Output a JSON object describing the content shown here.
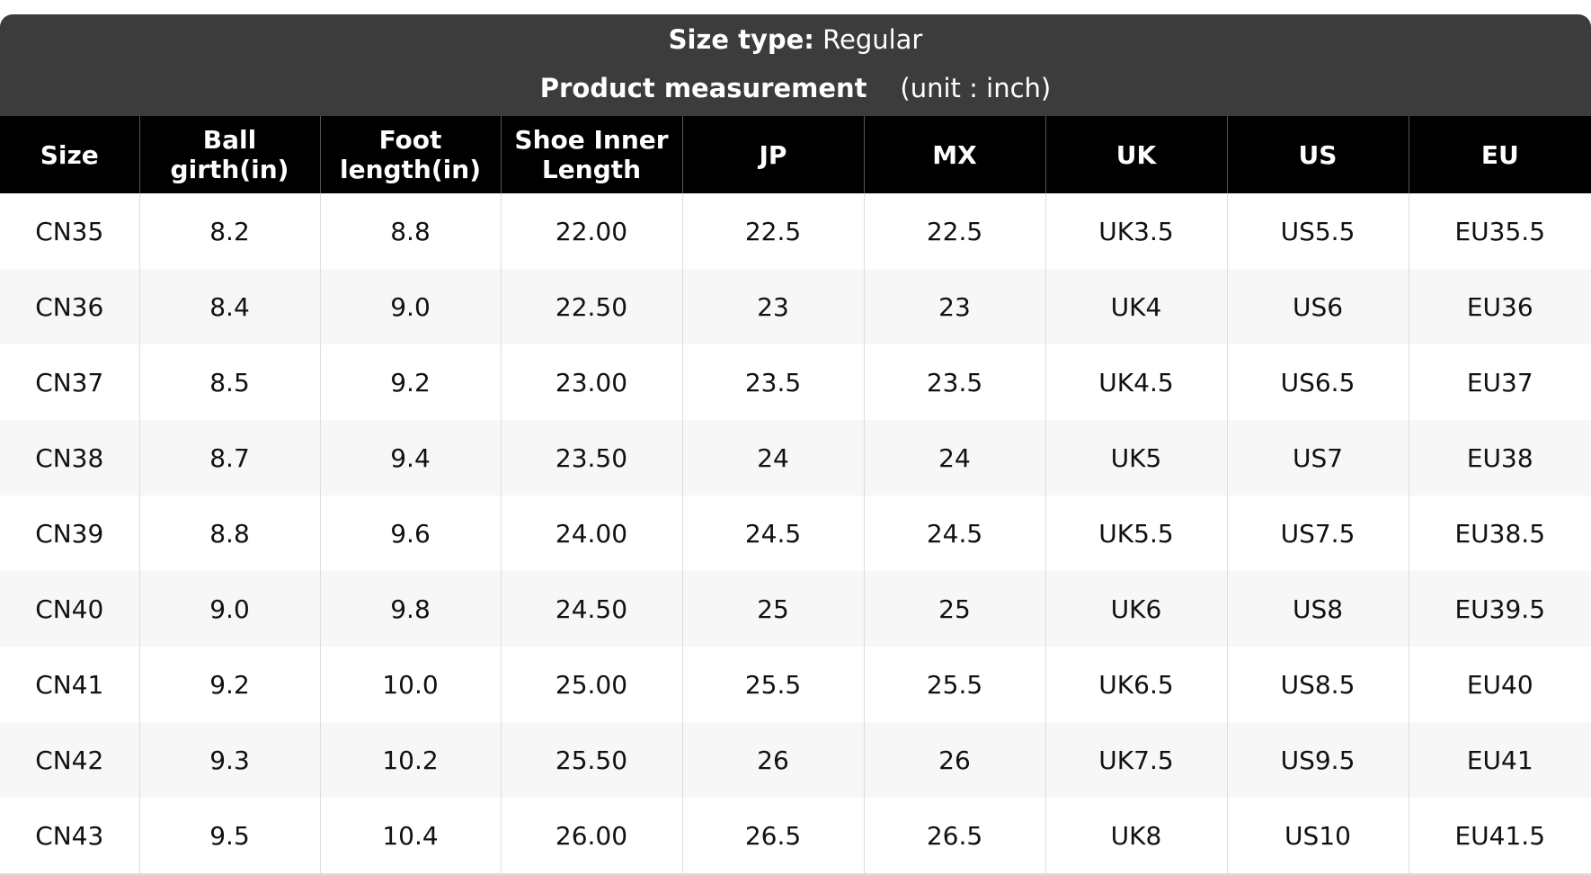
{
  "header": {
    "size_type_label": "Size type:",
    "size_type_value": "Regular",
    "measurement_label": "Product measurement",
    "unit": "(unit : inch)"
  },
  "table": {
    "columns": [
      "Size",
      "Ball girth(in)",
      "Foot length(in)",
      "Shoe Inner Length",
      "JP",
      "MX",
      "UK",
      "US",
      "EU"
    ],
    "rows": [
      [
        "CN35",
        "8.2",
        "8.8",
        "22.00",
        "22.5",
        "22.5",
        "UK3.5",
        "US5.5",
        "EU35.5"
      ],
      [
        "CN36",
        "8.4",
        "9.0",
        "22.50",
        "23",
        "23",
        "UK4",
        "US6",
        "EU36"
      ],
      [
        "CN37",
        "8.5",
        "9.2",
        "23.00",
        "23.5",
        "23.5",
        "UK4.5",
        "US6.5",
        "EU37"
      ],
      [
        "CN38",
        "8.7",
        "9.4",
        "23.50",
        "24",
        "24",
        "UK5",
        "US7",
        "EU38"
      ],
      [
        "CN39",
        "8.8",
        "9.6",
        "24.00",
        "24.5",
        "24.5",
        "UK5.5",
        "US7.5",
        "EU38.5"
      ],
      [
        "CN40",
        "9.0",
        "9.8",
        "24.50",
        "25",
        "25",
        "UK6",
        "US8",
        "EU39.5"
      ],
      [
        "CN41",
        "9.2",
        "10.0",
        "25.00",
        "25.5",
        "25.5",
        "UK6.5",
        "US8.5",
        "EU40"
      ],
      [
        "CN42",
        "9.3",
        "10.2",
        "25.50",
        "26",
        "26",
        "UK7.5",
        "US9.5",
        "EU41"
      ],
      [
        "CN43",
        "9.5",
        "10.4",
        "26.00",
        "26.5",
        "26.5",
        "UK8",
        "US10",
        "EU41.5"
      ]
    ]
  }
}
